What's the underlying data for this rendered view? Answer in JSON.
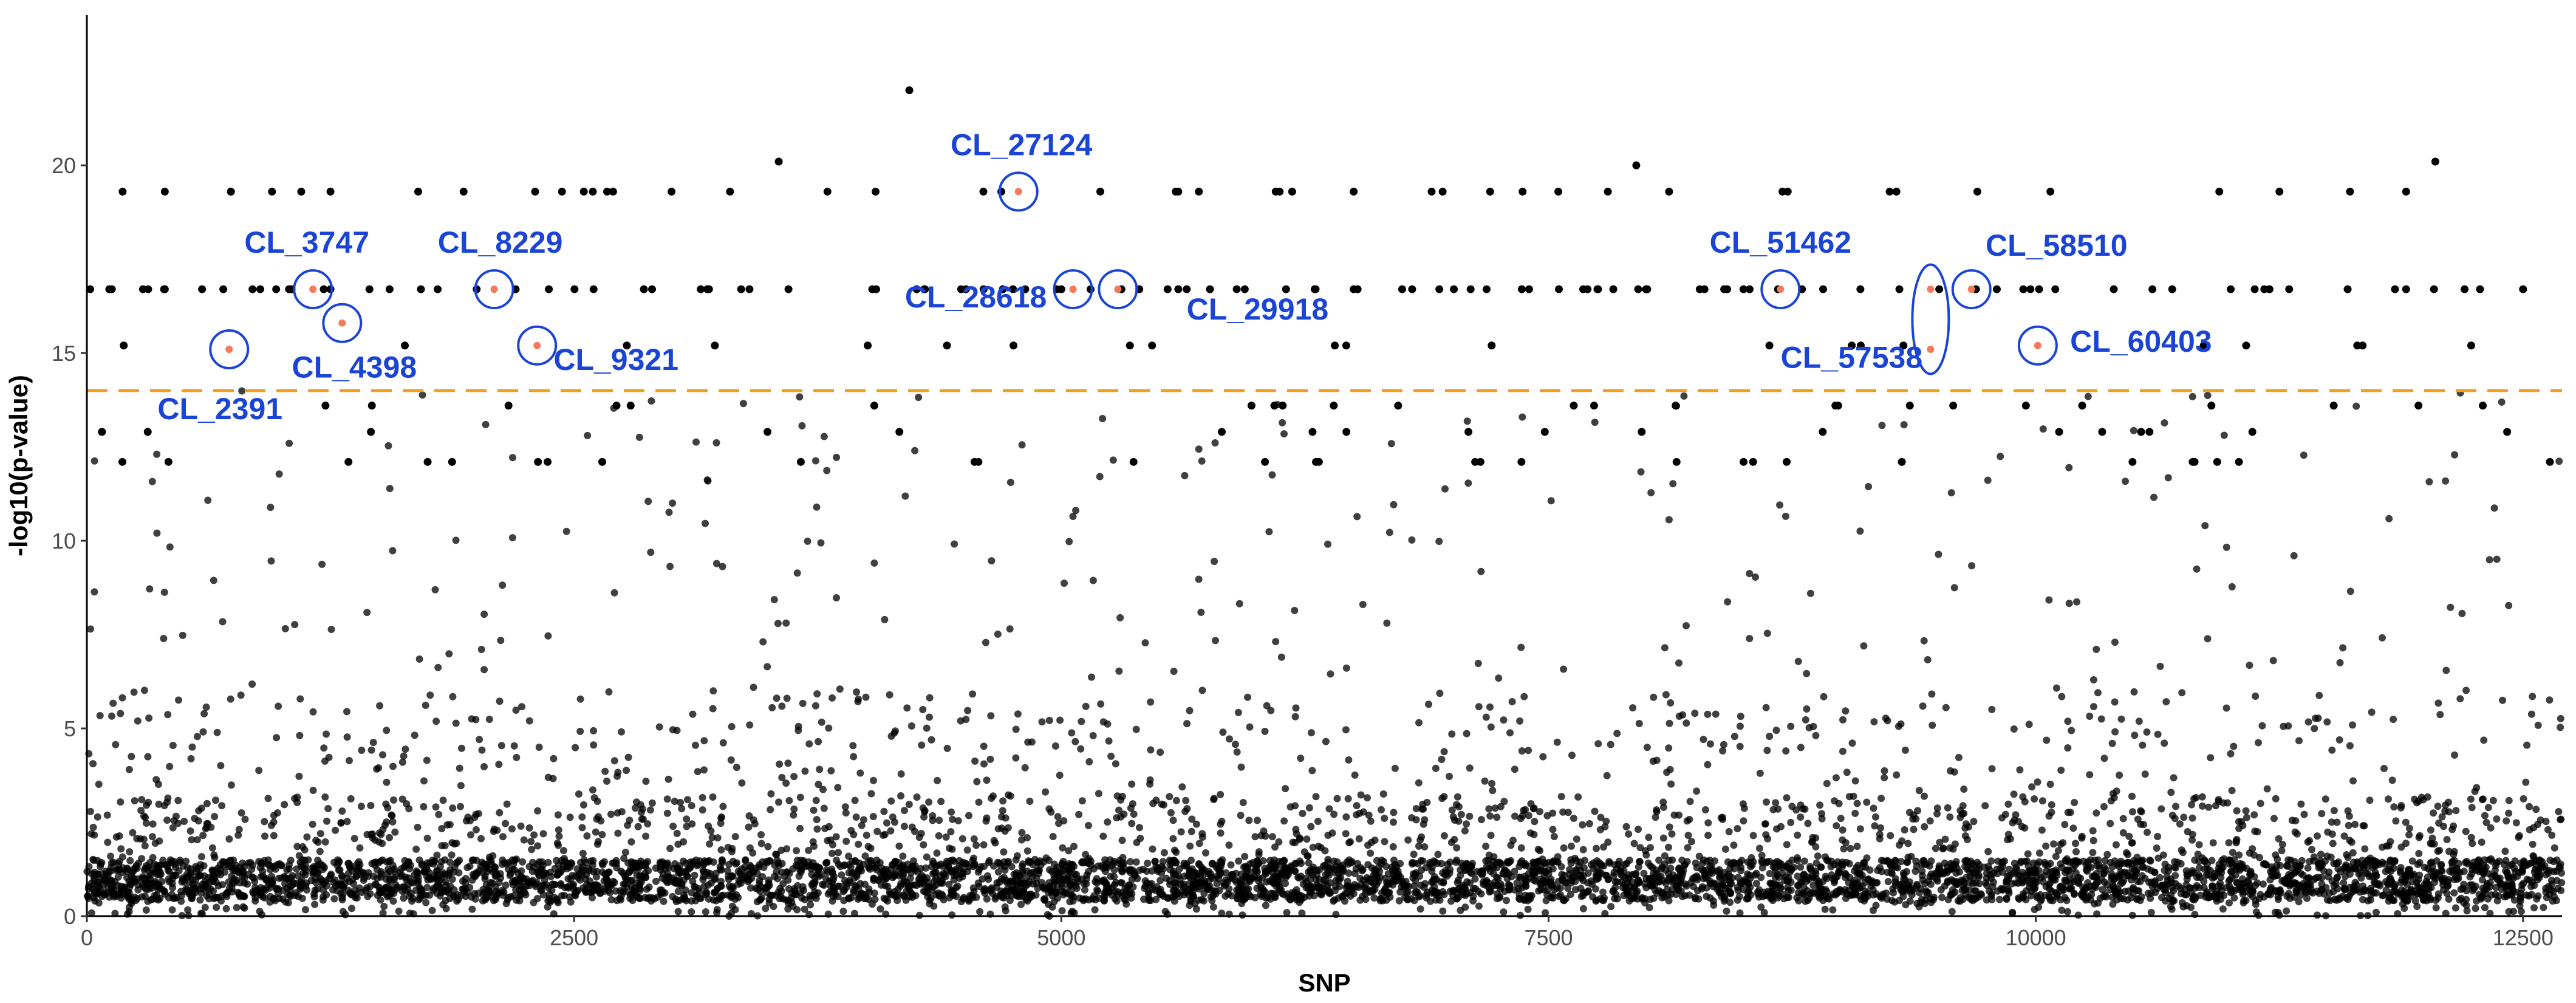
{
  "chart_data": {
    "type": "scatter",
    "xlabel": "SNP",
    "ylabel": "-log10(p-value)",
    "xlim": [
      0,
      12700
    ],
    "ylim": [
      0,
      24
    ],
    "x_ticks": [
      0,
      2500,
      5000,
      7500,
      10000,
      12500
    ],
    "y_ticks": [
      0,
      5,
      10,
      15,
      20
    ],
    "threshold": {
      "y": 14.0,
      "color": "#f0a020",
      "style": "dashed"
    },
    "point_color": "#000000",
    "highlight_color": "#f47a5a",
    "circle_color": "#1a44d6",
    "highlighted_snps": [
      {
        "label": "CL_2391",
        "x": 730,
        "y": 15.1
      },
      {
        "label": "CL_3747",
        "x": 1160,
        "y": 16.7
      },
      {
        "label": "CL_4398",
        "x": 1310,
        "y": 15.8
      },
      {
        "label": "CL_8229",
        "x": 2090,
        "y": 16.7
      },
      {
        "label": "CL_9321",
        "x": 2310,
        "y": 15.2
      },
      {
        "label": "CL_27124",
        "x": 4780,
        "y": 19.3
      },
      {
        "label": "CL_28618",
        "x": 5060,
        "y": 16.7
      },
      {
        "label": "CL_29918",
        "x": 5290,
        "y": 16.7
      },
      {
        "label": "CL_51462",
        "x": 8690,
        "y": 16.7
      },
      {
        "label": "CL_57538",
        "x": 9460,
        "y": 15.9
      },
      {
        "label": "CL_58510",
        "x": 9670,
        "y": 16.7
      },
      {
        "label": "CL_60403",
        "x": 10010,
        "y": 15.2
      }
    ],
    "points_note_series": [
      {
        "name": "upper_band",
        "x": [
          400,
          700,
          850,
          1050,
          1250,
          1450,
          1800,
          2000,
          2200,
          2600,
          2900,
          3150,
          3400,
          3600,
          4050,
          4300,
          4700,
          5000,
          5150,
          5400,
          5600,
          5900,
          6300,
          6500,
          6800,
          7100,
          7400,
          7700,
          8000,
          8300,
          8500,
          8800,
          9100,
          9300,
          9800,
          10100,
          10400,
          10700,
          11000,
          11300,
          11600,
          11900,
          12200,
          12500
        ],
        "y": [
          16.7,
          16.7,
          16.7,
          16.7,
          16.7,
          16.7,
          16.7,
          16.7,
          16.7,
          16.7,
          16.7,
          16.7,
          16.7,
          16.7,
          16.7,
          16.7,
          16.7,
          16.7,
          16.7,
          16.7,
          16.7,
          16.7,
          16.7,
          16.7,
          16.7,
          16.7,
          16.7,
          16.7,
          16.7,
          16.7,
          16.7,
          16.7,
          16.7,
          16.7,
          16.7,
          16.7,
          16.7,
          16.7,
          16.7,
          16.7,
          16.7,
          16.7,
          16.7,
          16.7
        ]
      },
      {
        "name": "top_band",
        "x": [
          400,
          950,
          1100,
          1250,
          1700,
          2300,
          2550,
          2700,
          3000,
          3300,
          3550,
          3800,
          4600,
          5200,
          5600,
          6100,
          6500,
          6900,
          7200,
          7550,
          7950,
          8700,
          9250,
          9700,
          11250,
          11900,
          12050
        ],
        "y": [
          19.3,
          19.3,
          19.3,
          19.3,
          19.3,
          19.3,
          19.3,
          19.3,
          19.3,
          19.3,
          20.1,
          19.3,
          19.3,
          19.3,
          19.3,
          19.3,
          19.3,
          19.3,
          19.3,
          19.3,
          20.0,
          19.3,
          19.3,
          19.3,
          19.3,
          19.3,
          20.1
        ]
      },
      {
        "name": "peak",
        "x": [
          4220
        ],
        "y": [
          22.0
        ]
      }
    ]
  }
}
